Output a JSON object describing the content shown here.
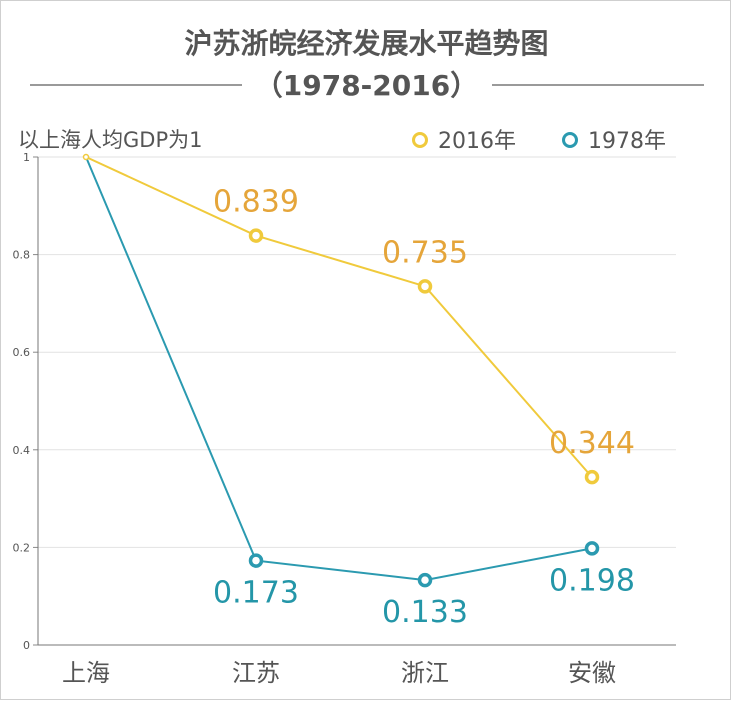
{
  "chart_data": {
    "type": "line",
    "title": "沪苏浙皖经济发展水平趋势图",
    "subtitle": "（1978-2016）",
    "unit_note": "以上海人均GDP为1",
    "categories": [
      "上海",
      "江苏",
      "浙江",
      "安徽"
    ],
    "series": [
      {
        "name": "2016年",
        "color": "#f0ca3c",
        "label_color": "#e5a53a",
        "values": [
          1,
          0.839,
          0.735,
          0.344
        ],
        "labels": [
          "",
          "0.839",
          "0.735",
          "0.344"
        ]
      },
      {
        "name": "1978年",
        "color": "#2b9ab0",
        "label_color": "#2496a8",
        "values": [
          1,
          0.173,
          0.133,
          0.198
        ],
        "labels": [
          "",
          "0.173",
          "0.133",
          "0.198"
        ]
      }
    ],
    "ylim": [
      0,
      1
    ],
    "yticks": [
      "0",
      "0.2",
      "0.4",
      "0.6",
      "0.8",
      "1"
    ],
    "grid": true,
    "legend_position": "top-right"
  }
}
